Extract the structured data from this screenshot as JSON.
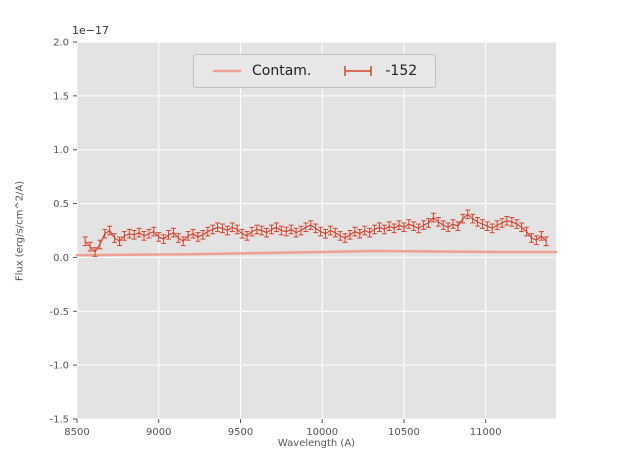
{
  "chart_data": {
    "type": "line",
    "title": "",
    "offset_text": "1e−17",
    "xlabel": "Wavelength (A)",
    "ylabel": "Flux (erg/s/cm^2/A)",
    "xlim": [
      8500,
      11430
    ],
    "ylim": [
      -1.5,
      2.0
    ],
    "grid": true,
    "xticks": [
      8500,
      9000,
      9500,
      10000,
      10500,
      11000
    ],
    "xtick_labels": [
      "8500",
      "9000",
      "9500",
      "10000",
      "10500",
      "11000"
    ],
    "yticks": [
      -1.5,
      -1.0,
      -0.5,
      0.0,
      0.5,
      1.0,
      1.5,
      2.0
    ],
    "ytick_labels": [
      "-1.5",
      "-1.0",
      "-0.5",
      "0.0",
      "0.5",
      "1.0",
      "1.5",
      "2.0"
    ],
    "legend": [
      {
        "label": "Contam.",
        "type": "line"
      },
      {
        "label": "-152",
        "type": "errorbar"
      }
    ],
    "legend_position": "upper center",
    "colors": {
      "data": "#d6432e",
      "contam": "#efa093",
      "plot_bg": "#e3e3e3",
      "grid": "#ffffff",
      "tick_label": "#555555",
      "legend_bg": "#e7e7e7",
      "legend_border": "#c0c0c0"
    },
    "series": [
      {
        "name": "Contam.",
        "type": "line",
        "x": [
          8500,
          8800,
          9200,
          9600,
          10000,
          10300,
          10700,
          11100,
          11430
        ],
        "y": [
          0.02,
          0.025,
          0.03,
          0.04,
          0.05,
          0.06,
          0.055,
          0.05,
          0.05
        ]
      },
      {
        "name": "-152",
        "type": "errorbar",
        "yerr": 0.04,
        "x": [
          8550,
          8580,
          8610,
          8640,
          8670,
          8700,
          8730,
          8760,
          8790,
          8820,
          8850,
          8880,
          8910,
          8940,
          8970,
          9000,
          9030,
          9060,
          9090,
          9120,
          9150,
          9180,
          9210,
          9240,
          9270,
          9300,
          9330,
          9360,
          9390,
          9420,
          9450,
          9480,
          9510,
          9540,
          9570,
          9600,
          9630,
          9660,
          9690,
          9720,
          9750,
          9780,
          9810,
          9840,
          9870,
          9900,
          9930,
          9960,
          9990,
          10020,
          10050,
          10080,
          10110,
          10140,
          10170,
          10200,
          10230,
          10260,
          10290,
          10320,
          10350,
          10380,
          10410,
          10440,
          10470,
          10500,
          10530,
          10560,
          10590,
          10620,
          10650,
          10680,
          10710,
          10740,
          10770,
          10800,
          10830,
          10860,
          10890,
          10920,
          10950,
          10980,
          11010,
          11040,
          11070,
          11100,
          11130,
          11160,
          11190,
          11220,
          11250,
          11280,
          11310,
          11340,
          11370
        ],
        "y": [
          0.15,
          0.1,
          0.05,
          0.12,
          0.22,
          0.25,
          0.18,
          0.15,
          0.2,
          0.22,
          0.21,
          0.23,
          0.2,
          0.22,
          0.24,
          0.19,
          0.17,
          0.21,
          0.23,
          0.18,
          0.15,
          0.2,
          0.22,
          0.19,
          0.21,
          0.24,
          0.26,
          0.28,
          0.27,
          0.25,
          0.28,
          0.26,
          0.22,
          0.2,
          0.24,
          0.26,
          0.25,
          0.23,
          0.26,
          0.28,
          0.25,
          0.24,
          0.26,
          0.23,
          0.25,
          0.28,
          0.3,
          0.27,
          0.24,
          0.22,
          0.25,
          0.23,
          0.2,
          0.18,
          0.21,
          0.24,
          0.22,
          0.25,
          0.23,
          0.26,
          0.28,
          0.26,
          0.29,
          0.27,
          0.3,
          0.28,
          0.31,
          0.29,
          0.27,
          0.3,
          0.32,
          0.37,
          0.33,
          0.3,
          0.28,
          0.31,
          0.29,
          0.36,
          0.4,
          0.36,
          0.33,
          0.31,
          0.29,
          0.27,
          0.3,
          0.32,
          0.34,
          0.33,
          0.31,
          0.28,
          0.24,
          0.18,
          0.16,
          0.2,
          0.15
        ]
      }
    ]
  }
}
